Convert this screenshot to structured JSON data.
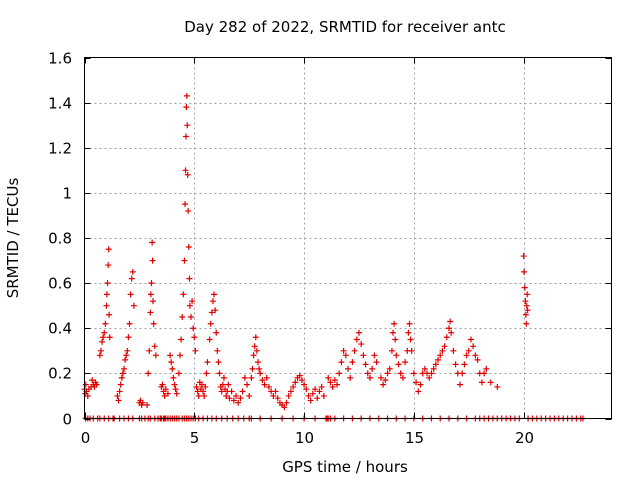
{
  "chart_data": {
    "type": "scatter",
    "title": "Day 282 of 2022, SRMTID for receiver antc",
    "xlabel": "GPS time / hours",
    "ylabel": "SRMTID / TECUs",
    "xlim": [
      0,
      24
    ],
    "ylim": [
      0,
      1.6
    ],
    "x_ticks": [
      0,
      5,
      10,
      15,
      20
    ],
    "x_tick_labels": [
      "0",
      "5",
      "10",
      "15",
      "20"
    ],
    "y_ticks": [
      0,
      0.2,
      0.4,
      0.6,
      0.8,
      1.0,
      1.2,
      1.4,
      1.6
    ],
    "y_tick_labels": [
      "0",
      "0.2",
      "0.4",
      "0.6",
      "0.8",
      "1",
      "1.2",
      "1.4",
      "1.6"
    ],
    "grid": true,
    "marker": "+",
    "color": "#e00000",
    "series": [
      {
        "name": "SRMTID",
        "points": [
          [
            0.0,
            0.13
          ],
          [
            0.03,
            0.11
          ],
          [
            0.06,
            0.15
          ],
          [
            0.1,
            0.12
          ],
          [
            0.15,
            0.1
          ],
          [
            0.2,
            0.13
          ],
          [
            0.3,
            0.14
          ],
          [
            0.35,
            0.17
          ],
          [
            0.4,
            0.15
          ],
          [
            0.45,
            0.14
          ],
          [
            0.5,
            0.16
          ],
          [
            0.55,
            0.15
          ],
          [
            0.7,
            0.28
          ],
          [
            0.75,
            0.3
          ],
          [
            0.8,
            0.34
          ],
          [
            0.85,
            0.36
          ],
          [
            0.9,
            0.38
          ],
          [
            0.95,
            0.42
          ],
          [
            1.0,
            0.5
          ],
          [
            1.02,
            0.55
          ],
          [
            1.05,
            0.6
          ],
          [
            1.08,
            0.68
          ],
          [
            1.1,
            0.75
          ],
          [
            1.12,
            0.46
          ],
          [
            1.15,
            0.36
          ],
          [
            1.5,
            0.1
          ],
          [
            1.55,
            0.08
          ],
          [
            1.6,
            0.12
          ],
          [
            1.65,
            0.15
          ],
          [
            1.7,
            0.18
          ],
          [
            1.75,
            0.2
          ],
          [
            1.8,
            0.22
          ],
          [
            1.85,
            0.26
          ],
          [
            1.9,
            0.28
          ],
          [
            1.95,
            0.3
          ],
          [
            2.0,
            0.36
          ],
          [
            2.05,
            0.42
          ],
          [
            2.1,
            0.55
          ],
          [
            2.15,
            0.62
          ],
          [
            2.2,
            0.65
          ],
          [
            2.25,
            0.5
          ],
          [
            2.5,
            0.07
          ],
          [
            2.55,
            0.08
          ],
          [
            2.6,
            0.06
          ],
          [
            2.65,
            0.07
          ],
          [
            2.85,
            0.06
          ],
          [
            2.9,
            0.2
          ],
          [
            2.95,
            0.3
          ],
          [
            3.0,
            0.47
          ],
          [
            3.02,
            0.55
          ],
          [
            3.05,
            0.6
          ],
          [
            3.08,
            0.78
          ],
          [
            3.1,
            0.7
          ],
          [
            3.12,
            0.52
          ],
          [
            3.15,
            0.42
          ],
          [
            3.2,
            0.32
          ],
          [
            3.25,
            0.28
          ],
          [
            3.5,
            0.14
          ],
          [
            3.55,
            0.15
          ],
          [
            3.6,
            0.12
          ],
          [
            3.65,
            0.1
          ],
          [
            3.7,
            0.13
          ],
          [
            3.8,
            0.11
          ],
          [
            3.9,
            0.28
          ],
          [
            3.95,
            0.25
          ],
          [
            4.0,
            0.22
          ],
          [
            4.05,
            0.18
          ],
          [
            4.1,
            0.15
          ],
          [
            4.15,
            0.13
          ],
          [
            4.2,
            0.11
          ],
          [
            4.3,
            0.2
          ],
          [
            4.35,
            0.28
          ],
          [
            4.4,
            0.35
          ],
          [
            4.45,
            0.45
          ],
          [
            4.5,
            0.55
          ],
          [
            4.55,
            0.7
          ],
          [
            4.58,
            0.95
          ],
          [
            4.6,
            1.1
          ],
          [
            4.62,
            1.25
          ],
          [
            4.64,
            1.38
          ],
          [
            4.66,
            1.43
          ],
          [
            4.68,
            1.3
          ],
          [
            4.7,
            1.08
          ],
          [
            4.72,
            0.92
          ],
          [
            4.75,
            0.76
          ],
          [
            4.78,
            0.62
          ],
          [
            4.8,
            0.5
          ],
          [
            4.85,
            0.45
          ],
          [
            4.9,
            0.52
          ],
          [
            4.95,
            0.4
          ],
          [
            5.0,
            0.36
          ],
          [
            5.05,
            0.3
          ],
          [
            5.1,
            0.14
          ],
          [
            5.15,
            0.12
          ],
          [
            5.2,
            0.1
          ],
          [
            5.25,
            0.16
          ],
          [
            5.3,
            0.13
          ],
          [
            5.35,
            0.15
          ],
          [
            5.4,
            0.12
          ],
          [
            5.45,
            0.1
          ],
          [
            5.5,
            0.14
          ],
          [
            5.55,
            0.2
          ],
          [
            5.6,
            0.25
          ],
          [
            5.7,
            0.35
          ],
          [
            5.75,
            0.42
          ],
          [
            5.8,
            0.47
          ],
          [
            5.85,
            0.52
          ],
          [
            5.9,
            0.55
          ],
          [
            5.95,
            0.48
          ],
          [
            6.0,
            0.38
          ],
          [
            6.05,
            0.3
          ],
          [
            6.1,
            0.25
          ],
          [
            6.15,
            0.2
          ],
          [
            6.2,
            0.14
          ],
          [
            6.25,
            0.12
          ],
          [
            6.3,
            0.15
          ],
          [
            6.35,
            0.18
          ],
          [
            6.4,
            0.13
          ],
          [
            6.45,
            0.1
          ],
          [
            6.5,
            0.12
          ],
          [
            6.55,
            0.15
          ],
          [
            6.6,
            0.09
          ],
          [
            6.7,
            0.12
          ],
          [
            6.8,
            0.08
          ],
          [
            6.9,
            0.1
          ],
          [
            7.0,
            0.07
          ],
          [
            7.1,
            0.09
          ],
          [
            7.2,
            0.12
          ],
          [
            7.3,
            0.18
          ],
          [
            7.4,
            0.15
          ],
          [
            7.5,
            0.1
          ],
          [
            7.6,
            0.18
          ],
          [
            7.65,
            0.22
          ],
          [
            7.7,
            0.28
          ],
          [
            7.75,
            0.32
          ],
          [
            7.8,
            0.36
          ],
          [
            7.85,
            0.3
          ],
          [
            7.9,
            0.25
          ],
          [
            7.95,
            0.22
          ],
          [
            8.0,
            0.2
          ],
          [
            8.1,
            0.17
          ],
          [
            8.2,
            0.15
          ],
          [
            8.3,
            0.18
          ],
          [
            8.4,
            0.14
          ],
          [
            8.5,
            0.12
          ],
          [
            8.6,
            0.1
          ],
          [
            8.7,
            0.12
          ],
          [
            8.8,
            0.09
          ],
          [
            8.9,
            0.07
          ],
          [
            9.0,
            0.06
          ],
          [
            9.1,
            0.05
          ],
          [
            9.2,
            0.07
          ],
          [
            9.3,
            0.1
          ],
          [
            9.4,
            0.12
          ],
          [
            9.5,
            0.14
          ],
          [
            9.6,
            0.16
          ],
          [
            9.7,
            0.18
          ],
          [
            9.8,
            0.19
          ],
          [
            9.9,
            0.17
          ],
          [
            10.0,
            0.15
          ],
          [
            10.1,
            0.13
          ],
          [
            10.2,
            0.1
          ],
          [
            10.3,
            0.08
          ],
          [
            10.4,
            0.11
          ],
          [
            10.5,
            0.13
          ],
          [
            10.6,
            0.09
          ],
          [
            10.7,
            0.12
          ],
          [
            10.8,
            0.14
          ],
          [
            10.9,
            0.1
          ],
          [
            11.1,
            0.18
          ],
          [
            11.2,
            0.16
          ],
          [
            11.3,
            0.14
          ],
          [
            11.4,
            0.17
          ],
          [
            11.5,
            0.15
          ],
          [
            11.6,
            0.2
          ],
          [
            11.7,
            0.25
          ],
          [
            11.8,
            0.3
          ],
          [
            11.9,
            0.28
          ],
          [
            12.0,
            0.22
          ],
          [
            12.1,
            0.18
          ],
          [
            12.2,
            0.25
          ],
          [
            12.3,
            0.3
          ],
          [
            12.4,
            0.35
          ],
          [
            12.5,
            0.38
          ],
          [
            12.6,
            0.33
          ],
          [
            12.7,
            0.28
          ],
          [
            12.8,
            0.24
          ],
          [
            12.9,
            0.2
          ],
          [
            13.0,
            0.18
          ],
          [
            13.1,
            0.22
          ],
          [
            13.2,
            0.28
          ],
          [
            13.3,
            0.25
          ],
          [
            13.5,
            0.18
          ],
          [
            13.6,
            0.15
          ],
          [
            13.7,
            0.17
          ],
          [
            13.8,
            0.2
          ],
          [
            13.9,
            0.22
          ],
          [
            14.0,
            0.3
          ],
          [
            14.05,
            0.38
          ],
          [
            14.1,
            0.42
          ],
          [
            14.15,
            0.35
          ],
          [
            14.2,
            0.28
          ],
          [
            14.3,
            0.24
          ],
          [
            14.4,
            0.2
          ],
          [
            14.5,
            0.18
          ],
          [
            14.6,
            0.25
          ],
          [
            14.7,
            0.3
          ],
          [
            14.75,
            0.38
          ],
          [
            14.8,
            0.42
          ],
          [
            14.85,
            0.35
          ],
          [
            14.9,
            0.3
          ],
          [
            15.0,
            0.2
          ],
          [
            15.1,
            0.16
          ],
          [
            15.2,
            0.12
          ],
          [
            15.3,
            0.15
          ],
          [
            15.4,
            0.2
          ],
          [
            15.5,
            0.22
          ],
          [
            15.6,
            0.2
          ],
          [
            15.7,
            0.18
          ],
          [
            15.8,
            0.2
          ],
          [
            15.9,
            0.22
          ],
          [
            16.0,
            0.24
          ],
          [
            16.1,
            0.26
          ],
          [
            16.2,
            0.28
          ],
          [
            16.3,
            0.3
          ],
          [
            16.4,
            0.32
          ],
          [
            16.5,
            0.36
          ],
          [
            16.6,
            0.4
          ],
          [
            16.65,
            0.43
          ],
          [
            16.7,
            0.38
          ],
          [
            16.8,
            0.3
          ],
          [
            16.9,
            0.24
          ],
          [
            17.0,
            0.2
          ],
          [
            17.1,
            0.15
          ],
          [
            17.2,
            0.2
          ],
          [
            17.3,
            0.24
          ],
          [
            17.4,
            0.28
          ],
          [
            17.5,
            0.3
          ],
          [
            17.6,
            0.35
          ],
          [
            17.7,
            0.32
          ],
          [
            17.8,
            0.28
          ],
          [
            17.9,
            0.26
          ],
          [
            18.0,
            0.2
          ],
          [
            18.1,
            0.16
          ],
          [
            18.2,
            0.2
          ],
          [
            18.3,
            0.22
          ],
          [
            18.5,
            0.16
          ],
          [
            18.8,
            0.14
          ],
          [
            20.0,
            0.72
          ],
          [
            20.02,
            0.65
          ],
          [
            20.05,
            0.58
          ],
          [
            20.08,
            0.52
          ],
          [
            20.1,
            0.46
          ],
          [
            20.12,
            0.42
          ],
          [
            20.14,
            0.5
          ],
          [
            20.16,
            0.55
          ],
          [
            20.18,
            0.48
          ]
        ],
        "zero_points_x": [
          0.05,
          0.15,
          0.25,
          0.4,
          0.6,
          0.7,
          0.9,
          1.1,
          1.3,
          1.35,
          1.6,
          1.8,
          2.0,
          2.2,
          2.5,
          2.6,
          2.75,
          2.9,
          3.0,
          3.2,
          3.35,
          3.45,
          3.5,
          3.6,
          3.65,
          3.7,
          3.8,
          3.9,
          4.0,
          4.1,
          4.2,
          4.3,
          4.45,
          4.55,
          4.65,
          4.75,
          4.85,
          4.95,
          5.05,
          5.2,
          5.4,
          5.6,
          5.8,
          6.0,
          6.25,
          6.5,
          6.75,
          7.0,
          7.25,
          7.5,
          7.6,
          8.0,
          8.5,
          9.0,
          9.5,
          10.0,
          10.5,
          11.0,
          11.05,
          11.1,
          11.2,
          11.4,
          11.8,
          12.2,
          12.6,
          13.0,
          13.4,
          13.8,
          14.2,
          14.6,
          15.0,
          15.4,
          15.8,
          16.2,
          16.6,
          17.0,
          17.4,
          17.8,
          18.0,
          18.2,
          18.4,
          18.6,
          18.8,
          19.0,
          19.2,
          19.4,
          19.6,
          19.8,
          20.2,
          20.4,
          20.6,
          20.8,
          21.0,
          21.2,
          21.4,
          21.6,
          21.8,
          22.0,
          22.2,
          22.4,
          22.6,
          22.7
        ]
      }
    ]
  }
}
